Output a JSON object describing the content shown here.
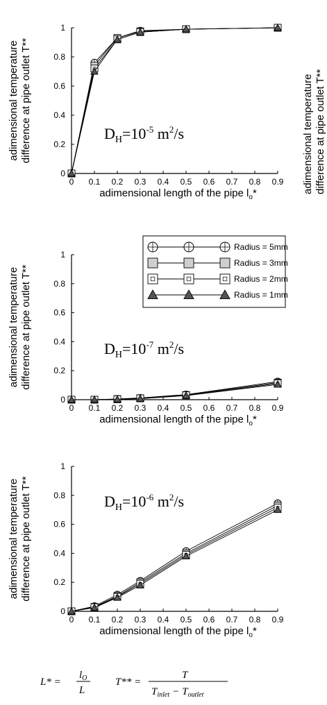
{
  "colors": {
    "axis": "#000000",
    "marker_fill_gray": "#cfcfcf",
    "marker_fill_dark": "#555555",
    "marker_stroke": "#000000"
  },
  "legend": {
    "entries": [
      {
        "label": "Radius = 5mm",
        "marker": "circle-cross",
        "fill": "#ffffff"
      },
      {
        "label": "Radius = 3mm",
        "marker": "square",
        "fill": "#cfcfcf"
      },
      {
        "label": "Radius = 2mm",
        "marker": "square-dot",
        "fill": "#ffffff"
      },
      {
        "label": "Radius = 1mm",
        "marker": "triangle",
        "fill": "#555555"
      }
    ]
  },
  "chart_data": [
    {
      "type": "line",
      "annotation": {
        "base": "D",
        "sub": "H",
        "eq": "=10",
        "exp": "-5",
        "unit": " m",
        "unit_exp": "2",
        "tail": "/s"
      },
      "xlabel": "adimensional length of the pipe l",
      "xlabel_sub": "o",
      "xlabel_tail": "*",
      "ylabel_line1": "adimensional temperature",
      "ylabel_line2": "difference at pipe outlet T**",
      "xlim": [
        0,
        0.9
      ],
      "ylim": [
        0,
        1
      ],
      "xticks": [
        "0",
        "0.1",
        "0.2",
        "0.3",
        "0.4",
        "0.5",
        "0.6",
        "0.7",
        "0.8",
        "0.9"
      ],
      "yticks": [
        "0",
        "0.2",
        "0.4",
        "0.6",
        "0.8",
        "1"
      ],
      "x": [
        0,
        0.1,
        0.2,
        0.3,
        0.5,
        0.9
      ],
      "series": [
        {
          "name": "Radius = 5mm",
          "values": [
            0,
            0.76,
            0.93,
            0.98,
            0.99,
            1.0
          ]
        },
        {
          "name": "Radius = 3mm",
          "values": [
            0,
            0.74,
            0.93,
            0.975,
            0.99,
            1.0
          ]
        },
        {
          "name": "Radius = 2mm",
          "values": [
            0,
            0.72,
            0.92,
            0.97,
            0.99,
            1.0
          ]
        },
        {
          "name": "Radius = 1mm",
          "values": [
            0,
            0.7,
            0.92,
            0.97,
            0.99,
            1.0
          ]
        }
      ],
      "show_legend": false
    },
    {
      "type": "line",
      "annotation": {
        "base": "D",
        "sub": "H",
        "eq": "=10",
        "exp": "-7",
        "unit": " m",
        "unit_exp": "2",
        "tail": "/s"
      },
      "xlabel": "adimensional length of the pipe l",
      "xlabel_sub": "o",
      "xlabel_tail": "*",
      "ylabel_line1": "adimensional temperature",
      "ylabel_line2": "difference at pipe outlet T**",
      "xlim": [
        0,
        0.9
      ],
      "ylim": [
        0,
        1
      ],
      "xticks": [
        "0",
        "0.1",
        "0.2",
        "0.3",
        "0.4",
        "0.5",
        "0.6",
        "0.7",
        "0.8",
        "0.9"
      ],
      "yticks": [
        "0",
        "0.2",
        "0.4",
        "0.6",
        "0.8",
        "1"
      ],
      "x": [
        0,
        0.1,
        0.2,
        0.3,
        0.5,
        0.9
      ],
      "series": [
        {
          "name": "Radius = 5mm",
          "values": [
            0,
            0.0,
            0.005,
            0.012,
            0.035,
            0.125
          ]
        },
        {
          "name": "Radius = 3mm",
          "values": [
            0,
            0.0,
            0.004,
            0.01,
            0.032,
            0.118
          ]
        },
        {
          "name": "Radius = 2mm",
          "values": [
            0,
            0.0,
            0.003,
            0.009,
            0.03,
            0.112
          ]
        },
        {
          "name": "Radius = 1mm",
          "values": [
            0,
            0.0,
            0.002,
            0.007,
            0.028,
            0.105
          ]
        }
      ],
      "show_legend": true
    },
    {
      "type": "line",
      "annotation": {
        "base": "D",
        "sub": "H",
        "eq": "=10",
        "exp": "-6",
        "unit": " m",
        "unit_exp": "2",
        "tail": "/s"
      },
      "xlabel": "adimensional length of the pipe l",
      "xlabel_sub": "o",
      "xlabel_tail": "*",
      "ylabel_line1": "adimensional temperature",
      "ylabel_line2": "difference at pipe outlet T**",
      "xlim": [
        0,
        0.9
      ],
      "ylim": [
        0,
        1
      ],
      "xticks": [
        "0",
        "0.1",
        "0.2",
        "0.3",
        "0.4",
        "0.5",
        "0.6",
        "0.7",
        "0.8",
        "0.9"
      ],
      "yticks": [
        "0",
        "0.2",
        "0.4",
        "0.6",
        "0.8",
        "1"
      ],
      "x": [
        0,
        0.1,
        0.2,
        0.3,
        0.5,
        0.9
      ],
      "series": [
        {
          "name": "Radius = 5mm",
          "values": [
            0,
            0.035,
            0.115,
            0.21,
            0.415,
            0.745
          ]
        },
        {
          "name": "Radius = 3mm",
          "values": [
            0,
            0.03,
            0.105,
            0.2,
            0.4,
            0.73
          ]
        },
        {
          "name": "Radius = 2mm",
          "values": [
            0,
            0.028,
            0.1,
            0.19,
            0.39,
            0.715
          ]
        },
        {
          "name": "Radius = 1mm",
          "values": [
            0,
            0.025,
            0.095,
            0.18,
            0.38,
            0.7
          ]
        }
      ],
      "show_legend": false
    }
  ],
  "formula": {
    "l_lhs": "L* =",
    "l_num": "l",
    "l_num_sub": "O",
    "l_den": "L",
    "t_lhs": "T** =",
    "t_num": "T",
    "t_den_a": "T",
    "t_den_a_sub": "inlet",
    "t_den_minus": "−",
    "t_den_b": "T",
    "t_den_b_sub": "outlet"
  },
  "right_edge_label": {
    "line1": "adimensional temperature",
    "line2": "difference at pipe outlet T**"
  }
}
